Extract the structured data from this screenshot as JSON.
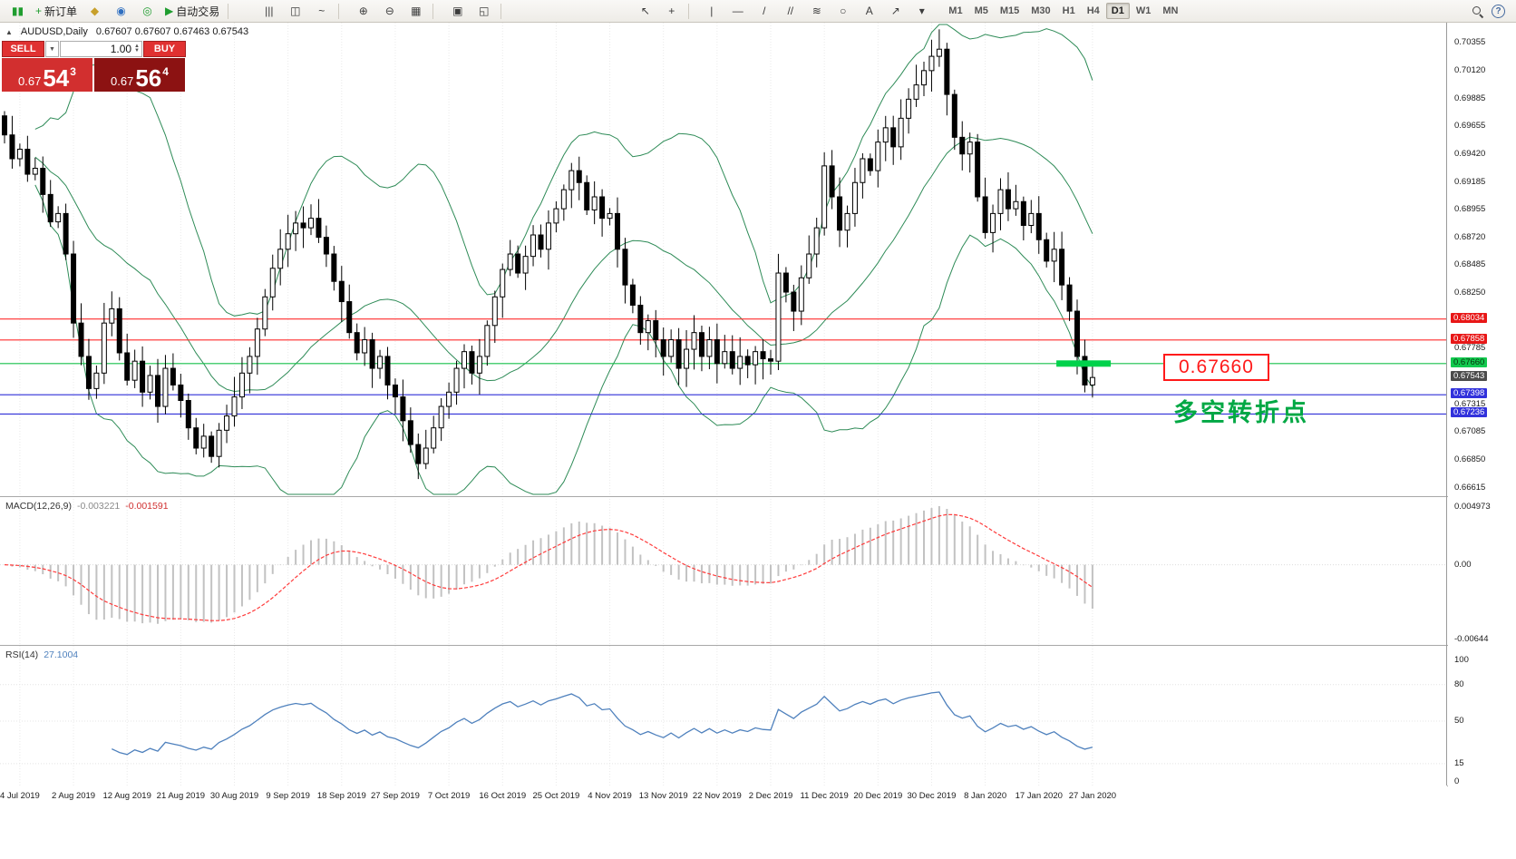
{
  "toolbar": {
    "groups": [
      {
        "name": "file",
        "items": [
          {
            "name": "app-logo-icon",
            "glyph": "▮▮",
            "color": "#1f9d2f"
          },
          {
            "name": "new-order-button",
            "glyph": "+",
            "color": "#1f9d2f",
            "label": "新订单"
          },
          {
            "name": "market-watch-icon",
            "glyph": "◆",
            "color": "#c8a02a"
          },
          {
            "name": "navigator-icon",
            "glyph": "◉",
            "color": "#2f6fc0"
          },
          {
            "name": "terminal-icon",
            "glyph": "◎",
            "color": "#1f9d2f"
          },
          {
            "name": "auto-trading-button",
            "glyph": "▶",
            "color": "#1f9d2f",
            "label": "自动交易"
          }
        ]
      },
      {
        "name": "chart-type",
        "items": [
          {
            "name": "bar-chart-icon",
            "glyph": "|||"
          },
          {
            "name": "candlestick-chart-icon",
            "glyph": "◫"
          },
          {
            "name": "line-chart-icon",
            "glyph": "~"
          }
        ]
      },
      {
        "name": "zoom",
        "items": [
          {
            "name": "zoom-in-icon",
            "glyph": "⊕"
          },
          {
            "name": "zoom-out-icon",
            "glyph": "⊖"
          },
          {
            "name": "grid-icon",
            "glyph": "▦"
          }
        ]
      },
      {
        "name": "windows",
        "items": [
          {
            "name": "tile-windows-icon",
            "glyph": "▣"
          },
          {
            "name": "cascade-windows-icon",
            "glyph": "◱"
          }
        ]
      },
      {
        "name": "cursor",
        "items": [
          {
            "name": "cursor-icon",
            "glyph": "↖"
          },
          {
            "name": "crosshair-icon",
            "glyph": "+"
          }
        ]
      },
      {
        "name": "draw",
        "items": [
          {
            "name": "vertical-line-tool-icon",
            "glyph": "|"
          },
          {
            "name": "horizontal-line-tool-icon",
            "glyph": "—"
          },
          {
            "name": "trendline-tool-icon",
            "glyph": "/"
          },
          {
            "name": "channel-tool-icon",
            "glyph": "//"
          },
          {
            "name": "fibonacci-tool-icon",
            "glyph": "≋"
          },
          {
            "name": "shapes-tool-icon",
            "glyph": "○"
          },
          {
            "name": "text-tool-icon",
            "glyph": "A"
          },
          {
            "name": "arrow-tool-icon",
            "glyph": "↗"
          },
          {
            "name": "more-tools-icon",
            "glyph": "▾"
          }
        ]
      }
    ],
    "timeframes": [
      "M1",
      "M5",
      "M15",
      "M30",
      "H1",
      "H4",
      "D1",
      "W1",
      "MN"
    ],
    "active_timeframe": "D1"
  },
  "chart": {
    "symbol_line": {
      "symbol": "AUDUSD,Daily",
      "ohlc": "0.67607 0.67607 0.67463 0.67543"
    },
    "trade_panel": {
      "sell_label": "SELL",
      "buy_label": "BUY",
      "volume": "1.00",
      "sell": {
        "prefix": "0.67",
        "big": "54",
        "sup": "3"
      },
      "buy": {
        "prefix": "0.67",
        "big": "56",
        "sup": "4"
      }
    },
    "hlines": [
      {
        "price": 0.68034,
        "color": "#ff2d2d"
      },
      {
        "price": 0.67858,
        "color": "#ff2d2d"
      },
      {
        "price": 0.6766,
        "color": "#16c04a"
      },
      {
        "price": 0.67398,
        "color": "#2f2fd8"
      },
      {
        "price": 0.67236,
        "color": "#2f2fd8"
      }
    ],
    "price_flags": [
      {
        "text": "0.68034",
        "bg": "#e81717",
        "fg": "#ffffff"
      },
      {
        "text": "0.67858",
        "bg": "#e81717",
        "fg": "#ffffff"
      },
      {
        "text": "0.67660",
        "bg": "#12c94e",
        "fg": "#08310f"
      },
      {
        "text": "0.67543",
        "bg": "#4c4c4c",
        "fg": "#ffffff"
      },
      {
        "text": "0.67398",
        "bg": "#3232dc",
        "fg": "#ffffff"
      },
      {
        "text": "0.67236",
        "bg": "#3232dc",
        "fg": "#ffffff"
      }
    ],
    "highlight": {
      "price": 0.6766,
      "color": "#00d24b"
    },
    "annotation": {
      "price_text": "0.67660"
    },
    "note_cn": "多空转折点",
    "colors": {
      "bull": "#ffffff",
      "bear": "#000000",
      "band": "#2e8b57",
      "hist": "#c2c2c2",
      "signal": "#ff3b3b",
      "rsi": "#4f81bd"
    }
  },
  "chart_data": {
    "type": "candlestick",
    "symbol": "AUDUSD",
    "period": "Daily",
    "x_labels": [
      "4 Jul 2019",
      "2 Aug 2019",
      "12 Aug 2019",
      "21 Aug 2019",
      "30 Aug 2019",
      "9 Sep 2019",
      "18 Sep 2019",
      "27 Sep 2019",
      "7 Oct 2019",
      "16 Oct 2019",
      "25 Oct 2019",
      "4 Nov 2019",
      "13 Nov 2019",
      "22 Nov 2019",
      "2 Dec 2019",
      "11 Dec 2019",
      "20 Dec 2019",
      "30 Dec 2019",
      "8 Jan 2020",
      "17 Jan 2020",
      "27 Jan 2020"
    ],
    "x_label_first_index": 2,
    "x_label_step": 7,
    "price_axis_ticks": [
      "0.70355",
      "0.70120",
      "0.69885",
      "0.69655",
      "0.69420",
      "0.69185",
      "0.68955",
      "0.68720",
      "0.68485",
      "0.68250",
      "0.67785",
      "0.67315",
      "0.67085",
      "0.66850",
      "0.66615"
    ],
    "ylim": [
      0.66615,
      0.70355
    ],
    "closes": [
      0.6958,
      0.6938,
      0.6946,
      0.6925,
      0.693,
      0.6908,
      0.6885,
      0.6892,
      0.6858,
      0.68,
      0.6772,
      0.6745,
      0.6758,
      0.68,
      0.6812,
      0.6775,
      0.6752,
      0.6768,
      0.6742,
      0.6756,
      0.673,
      0.6762,
      0.6748,
      0.6735,
      0.6712,
      0.6695,
      0.6705,
      0.6688,
      0.671,
      0.6722,
      0.6738,
      0.6758,
      0.6772,
      0.6795,
      0.6822,
      0.6846,
      0.6862,
      0.6875,
      0.6884,
      0.688,
      0.6888,
      0.6872,
      0.6858,
      0.6835,
      0.6818,
      0.6792,
      0.6775,
      0.6786,
      0.6762,
      0.6772,
      0.6748,
      0.6738,
      0.6718,
      0.6698,
      0.6682,
      0.6695,
      0.6712,
      0.673,
      0.6742,
      0.6762,
      0.6776,
      0.6758,
      0.6772,
      0.6798,
      0.6822,
      0.6845,
      0.6858,
      0.6842,
      0.6856,
      0.6874,
      0.6862,
      0.6884,
      0.6896,
      0.6912,
      0.6928,
      0.6918,
      0.6895,
      0.6906,
      0.6888,
      0.6892,
      0.6862,
      0.6832,
      0.6815,
      0.6792,
      0.6802,
      0.6786,
      0.6772,
      0.6786,
      0.6762,
      0.6778,
      0.6792,
      0.6772,
      0.6786,
      0.6766,
      0.6776,
      0.6762,
      0.6772,
      0.6765,
      0.6776,
      0.677,
      0.6768,
      0.6842,
      0.6826,
      0.681,
      0.6838,
      0.6858,
      0.688,
      0.6932,
      0.6906,
      0.6878,
      0.6892,
      0.6918,
      0.6938,
      0.6928,
      0.6952,
      0.6964,
      0.6948,
      0.6972,
      0.6988,
      0.7,
      0.7012,
      0.7024,
      0.703,
      0.6992,
      0.6956,
      0.6942,
      0.6952,
      0.6906,
      0.6876,
      0.6892,
      0.6912,
      0.6896,
      0.6902,
      0.6882,
      0.6892,
      0.687,
      0.6852,
      0.6862,
      0.6832,
      0.681,
      0.6772,
      0.6748,
      0.67543
    ],
    "bollinger": {
      "period": 20,
      "deviation": 2
    },
    "macd": {
      "label": "MACD(12,26,9)",
      "value_main": "-0.003221",
      "value_signal": "-0.001591",
      "axis_ticks": [
        "0.004973",
        "0.00",
        "-0.00644"
      ]
    },
    "rsi": {
      "label": "RSI(14)",
      "value": "27.1004",
      "axis_ticks": [
        "100",
        "80",
        "50",
        "15",
        "0"
      ],
      "levels": [
        80,
        50,
        15
      ]
    }
  }
}
